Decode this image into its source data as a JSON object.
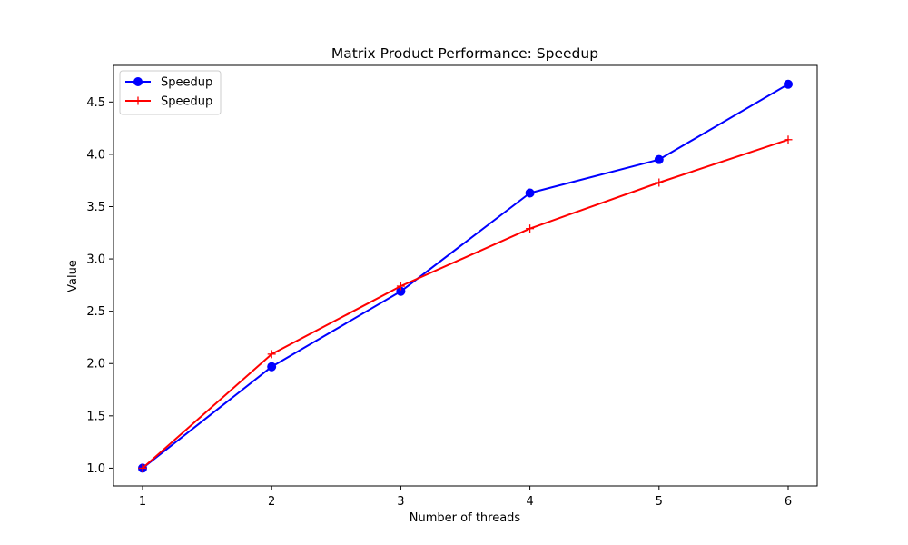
{
  "chart_data": {
    "type": "line",
    "title": "Matrix Product Performance: Speedup",
    "xlabel": "Number of threads",
    "ylabel": "Value",
    "x": [
      1,
      2,
      3,
      4,
      5,
      6
    ],
    "x_ticks": [
      "1",
      "2",
      "3",
      "4",
      "5",
      "6"
    ],
    "y_ticks": [
      "1.0",
      "1.5",
      "2.0",
      "2.5",
      "3.0",
      "3.5",
      "4.0",
      "4.5"
    ],
    "xlim": [
      0.775,
      6.225
    ],
    "ylim": [
      0.83,
      4.85
    ],
    "grid": false,
    "legend_position": "top-left",
    "series": [
      {
        "name": "Speedup",
        "color": "#0000ff",
        "marker": "circle",
        "values": [
          1.0,
          1.97,
          2.69,
          3.63,
          3.95,
          4.67
        ]
      },
      {
        "name": "Speedup",
        "color": "#ff0000",
        "marker": "plus",
        "values": [
          1.0,
          2.09,
          2.74,
          3.29,
          3.73,
          4.14
        ]
      }
    ]
  }
}
